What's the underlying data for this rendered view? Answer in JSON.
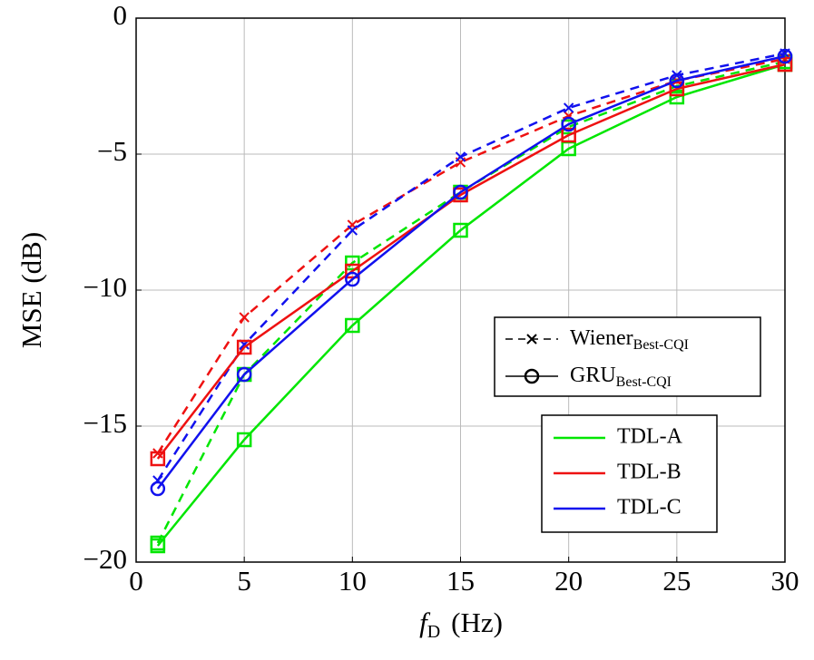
{
  "chart_data": {
    "type": "line",
    "xlabel": {
      "symbol": "f",
      "subscript": "D",
      "unit": "(Hz)"
    },
    "ylabel": "MSE (dB)",
    "x": [
      1,
      5,
      10,
      15,
      20,
      25,
      30
    ],
    "xlim": [
      0,
      30
    ],
    "ylim": [
      -20,
      0
    ],
    "xticks": [
      0,
      5,
      10,
      15,
      20,
      25,
      30
    ],
    "yticks": [
      {
        "value": -20,
        "label": "−20"
      },
      {
        "value": -15,
        "label": "−15"
      },
      {
        "value": -10,
        "label": "−10"
      },
      {
        "value": -5,
        "label": "−5"
      },
      0
    ],
    "grid": true,
    "series": [
      {
        "name": "TDL-A",
        "color": "#00e600",
        "dashed": true,
        "marker": "square",
        "values": [
          -19.3,
          -13.1,
          -9.0,
          -6.4,
          -4.0,
          -2.5,
          -1.6
        ]
      },
      {
        "name": "TDL-B",
        "color": "#ee1111",
        "dashed": true,
        "marker": "x",
        "values": [
          -16.0,
          -11.0,
          -7.6,
          -5.3,
          -3.6,
          -2.3,
          -1.5
        ]
      },
      {
        "name": "TDL-C",
        "color": "#1111ee",
        "dashed": true,
        "marker": "x",
        "values": [
          -17.0,
          -12.0,
          -7.8,
          -5.1,
          -3.3,
          -2.1,
          -1.3
        ]
      },
      {
        "name": "TDL-A",
        "color": "#00e600",
        "dashed": false,
        "marker": "square",
        "values": [
          -19.4,
          -15.5,
          -11.3,
          -7.8,
          -4.8,
          -2.9,
          -1.7
        ]
      },
      {
        "name": "TDL-B",
        "color": "#ee1111",
        "dashed": false,
        "marker": "square",
        "values": [
          -16.2,
          -12.1,
          -9.3,
          -6.5,
          -4.3,
          -2.6,
          -1.7
        ]
      },
      {
        "name": "TDL-C",
        "color": "#1111ee",
        "dashed": false,
        "marker": "circle",
        "values": [
          -17.3,
          -13.1,
          -9.6,
          -6.4,
          -3.9,
          -2.3,
          -1.4
        ]
      }
    ],
    "style_legend": [
      {
        "label": "Wiener",
        "subscript": "Best-CQI",
        "dashed": true,
        "marker": "x"
      },
      {
        "label": "GRU",
        "subscript": "Best-CQI",
        "dashed": false,
        "marker": "circle"
      }
    ]
  }
}
